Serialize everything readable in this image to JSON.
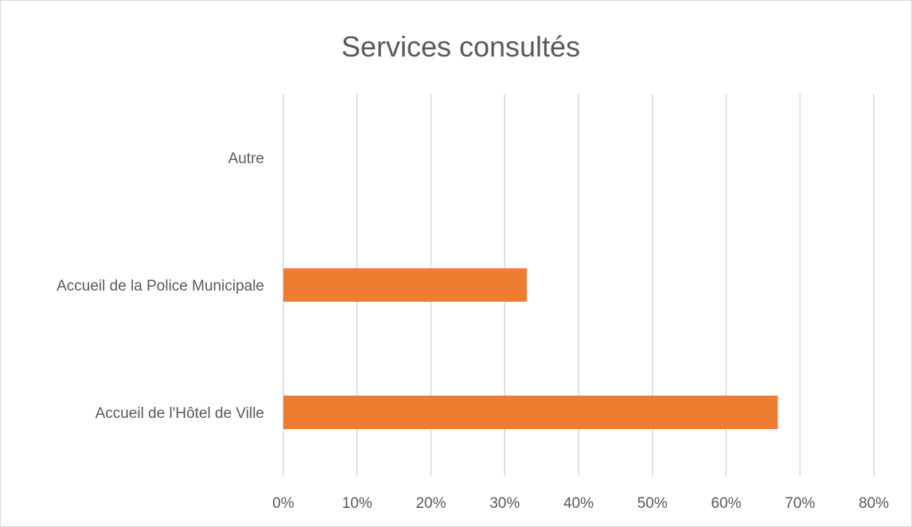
{
  "chart_data": {
    "type": "bar",
    "orientation": "horizontal",
    "title": "Services consultés",
    "categories": [
      "Autre",
      "Accueil de la Police Municipale",
      "Accueil de l'Hôtel de Ville"
    ],
    "values": [
      0,
      0.33,
      0.67
    ],
    "xlim": [
      0,
      0.8
    ],
    "x_ticks": [
      0,
      0.1,
      0.2,
      0.3,
      0.4,
      0.5,
      0.6,
      0.7,
      0.8
    ],
    "x_tick_labels": [
      "0%",
      "10%",
      "20%",
      "30%",
      "40%",
      "50%",
      "60%",
      "70%",
      "80%"
    ],
    "grid": true,
    "legend": "none",
    "bar_color": "#ed7d31"
  }
}
